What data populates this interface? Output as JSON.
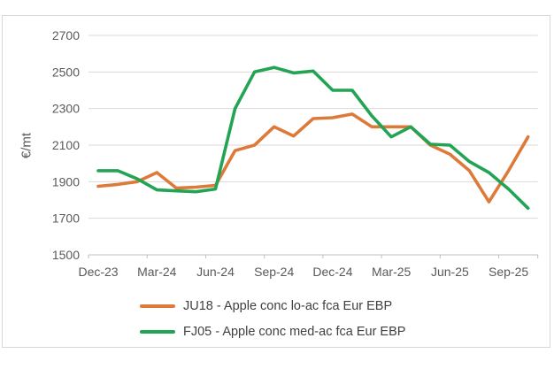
{
  "chart": {
    "colors": {
      "ju18_orange": "#DE7A39",
      "fj05_green": "#23A455",
      "gridline": "#D9D9D9",
      "axis_line": "#BFBFBF",
      "tick_text": "#595959",
      "legend_text": "#404040",
      "frame_border": "#D8D8D8"
    }
  },
  "chart_data": {
    "type": "line",
    "title": "",
    "ylabel": "€/mt",
    "xlabel": "",
    "ylim": [
      1500,
      2700
    ],
    "y_ticks": [
      1500,
      1700,
      1900,
      2100,
      2300,
      2500,
      2700
    ],
    "grid": "horizontal",
    "legend_position": "bottom-left",
    "x": [
      "Dec-23",
      "Jan-24",
      "Feb-24",
      "Mar-24",
      "Apr-24",
      "May-24",
      "Jun-24",
      "Jul-24",
      "Aug-24",
      "Sep-24",
      "Oct-24",
      "Nov-24",
      "Dec-24",
      "Jan-25",
      "Feb-25",
      "Mar-25",
      "Apr-25",
      "May-25",
      "Jun-25",
      "Jul-25",
      "Aug-25",
      "Sep-25",
      "Oct-25"
    ],
    "x_tick_labels": [
      "Dec-23",
      "Mar-24",
      "Jun-24",
      "Sep-24",
      "Dec-24",
      "Mar-25",
      "Jun-25",
      "Sep-25"
    ],
    "x_tick_every": 3,
    "series": [
      {
        "name": "JU18 - Apple conc lo-ac fca Eur EBP",
        "color": "#DE7A39",
        "values": [
          1875,
          1885,
          1900,
          1950,
          1865,
          1870,
          1880,
          2070,
          2100,
          2200,
          2150,
          2245,
          2250,
          2270,
          2200,
          2200,
          2200,
          2100,
          2050,
          1960,
          1790,
          1960,
          2145
        ]
      },
      {
        "name": "FJ05 - Apple conc med-ac fca Eur EBP",
        "color": "#23A455",
        "values": [
          1960,
          1960,
          1915,
          1855,
          1850,
          1845,
          1860,
          2300,
          2500,
          2525,
          2495,
          2505,
          2400,
          2400,
          2260,
          2145,
          2200,
          2105,
          2100,
          2010,
          1950,
          1860,
          1755
        ]
      }
    ]
  }
}
